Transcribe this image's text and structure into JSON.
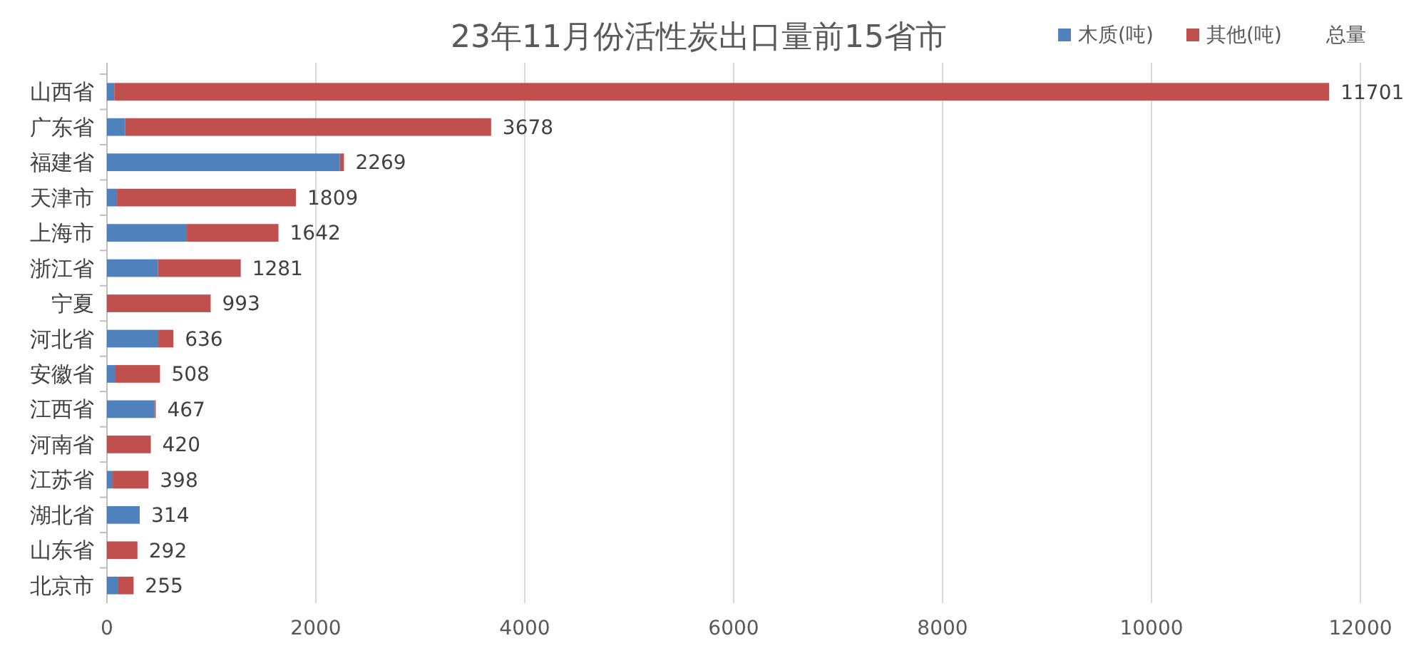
{
  "chart_data": {
    "type": "bar",
    "orientation": "horizontal",
    "stacked": true,
    "title": "23年11月份活性炭出口量前15省市",
    "categories": [
      "山西省",
      "广东省",
      "福建省",
      "天津市",
      "上海市",
      "浙江省",
      "宁夏",
      "河北省",
      "安徽省",
      "江西省",
      "河南省",
      "江苏省",
      "湖北省",
      "山东省",
      "北京市"
    ],
    "series": [
      {
        "name": "木质(吨)",
        "color": "#4f81bd",
        "values": [
          70,
          173,
          2230,
          96,
          765,
          487,
          0,
          492,
          82,
          455,
          0,
          55,
          314,
          0,
          109
        ]
      },
      {
        "name": "其他(吨)",
        "color": "#c0504d",
        "values": [
          11631,
          3505,
          39,
          1713,
          877,
          794,
          993,
          144,
          426,
          12,
          420,
          343,
          0,
          292,
          146
        ]
      },
      {
        "name": "总量",
        "values": [
          null,
          null,
          null,
          null,
          null,
          null,
          null,
          null,
          null,
          null,
          null,
          null,
          null,
          null,
          null
        ]
      }
    ],
    "totals": [
      "11701",
      "3678",
      "2269",
      "1809",
      "1642",
      "1281",
      "993",
      "636",
      "508",
      "467",
      "420",
      "398",
      "314",
      "292",
      "255"
    ],
    "xlim": [
      0,
      12000
    ],
    "xticks": [
      0,
      2000,
      4000,
      6000,
      8000,
      10000,
      12000
    ],
    "grid": "x",
    "legend": "top right"
  }
}
